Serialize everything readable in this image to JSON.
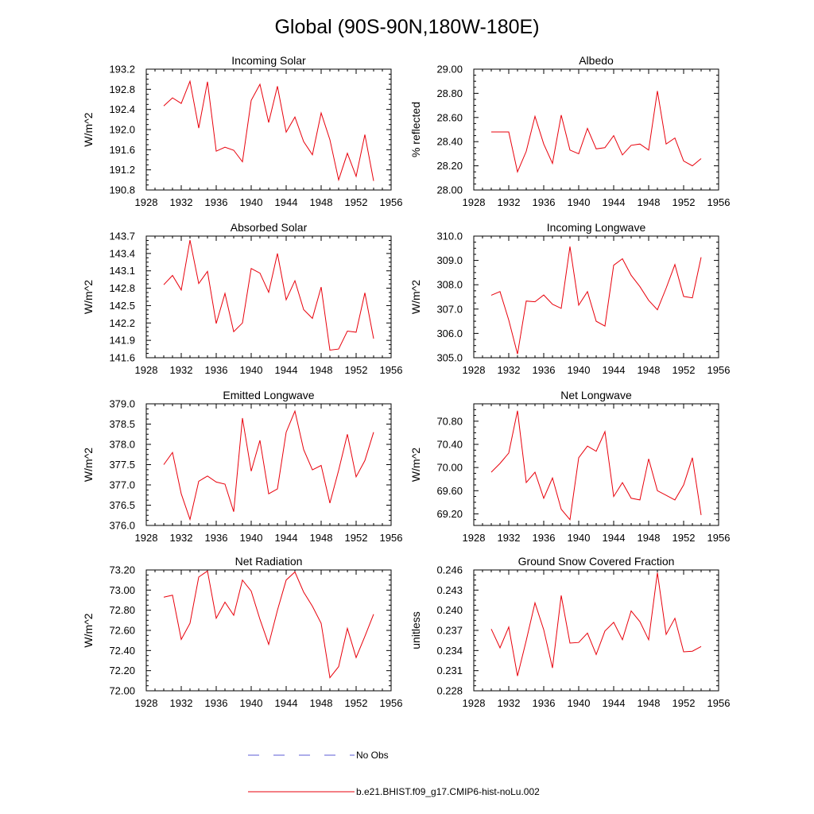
{
  "figure": {
    "title": "Global (90S-90N,180W-180E)"
  },
  "legend": {
    "entries": [
      {
        "label": "No Obs",
        "color": "#5b5bd6",
        "dash": true
      },
      {
        "label": "b.e21.BHIST.f09_g17.CMIP6-hist-noLu.002",
        "color": "#e8000b",
        "dash": false
      }
    ]
  },
  "colors": {
    "series": "#e8000b",
    "obs": "#5b5bd6"
  },
  "chart_data": [
    {
      "type": "line",
      "title": "Incoming Solar",
      "ylabel": "W/m^2",
      "xlim": [
        1928,
        1956
      ],
      "xticks": [
        1928,
        1932,
        1936,
        1940,
        1944,
        1948,
        1952,
        1956
      ],
      "ylim": [
        190.8,
        193.2
      ],
      "yticks": [
        "190.8",
        "191.2",
        "191.6",
        "192.0",
        "192.4",
        "192.8",
        "193.2"
      ],
      "series": [
        {
          "x": [
            1930,
            1931,
            1932,
            1933,
            1934,
            1935,
            1936,
            1937,
            1938,
            1939,
            1940,
            1941,
            1942,
            1943,
            1944,
            1945,
            1946,
            1947,
            1948,
            1949,
            1950,
            1951,
            1952,
            1953,
            1954
          ],
          "values": [
            192.47,
            192.63,
            192.52,
            192.96,
            192.03,
            192.95,
            191.57,
            191.65,
            191.59,
            191.36,
            192.58,
            192.9,
            192.14,
            192.86,
            191.95,
            192.25,
            191.76,
            191.5,
            192.33,
            191.8,
            191.0,
            191.53,
            191.07,
            191.9,
            190.98
          ]
        }
      ]
    },
    {
      "type": "line",
      "title": "Albedo",
      "ylabel": "% reflected",
      "xlim": [
        1928,
        1956
      ],
      "xticks": [
        1928,
        1932,
        1936,
        1940,
        1944,
        1948,
        1952,
        1956
      ],
      "ylim": [
        28.0,
        29.0
      ],
      "yticks": [
        "28.00",
        "28.20",
        "28.40",
        "28.60",
        "28.80",
        "29.00"
      ],
      "series": [
        {
          "x": [
            1930,
            1931,
            1932,
            1933,
            1934,
            1935,
            1936,
            1937,
            1938,
            1939,
            1940,
            1941,
            1942,
            1943,
            1944,
            1945,
            1946,
            1947,
            1948,
            1949,
            1950,
            1951,
            1952,
            1953,
            1954
          ],
          "values": [
            28.48,
            28.48,
            28.48,
            28.15,
            28.32,
            28.61,
            28.38,
            28.22,
            28.62,
            28.33,
            28.3,
            28.51,
            28.34,
            28.35,
            28.45,
            28.29,
            28.37,
            28.38,
            28.33,
            28.82,
            28.38,
            28.43,
            28.24,
            28.2,
            28.26
          ]
        }
      ]
    },
    {
      "type": "line",
      "title": "Absorbed Solar",
      "ylabel": "W/m^2",
      "xlim": [
        1928,
        1956
      ],
      "xticks": [
        1928,
        1932,
        1936,
        1940,
        1944,
        1948,
        1952,
        1956
      ],
      "ylim": [
        141.6,
        143.7
      ],
      "yticks": [
        "141.6",
        "141.9",
        "142.2",
        "142.5",
        "142.8",
        "143.1",
        "143.4",
        "143.7"
      ],
      "series": [
        {
          "x": [
            1930,
            1931,
            1932,
            1933,
            1934,
            1935,
            1936,
            1937,
            1938,
            1939,
            1940,
            1941,
            1942,
            1943,
            1944,
            1945,
            1946,
            1947,
            1948,
            1949,
            1950,
            1951,
            1952,
            1953,
            1954
          ],
          "values": [
            142.86,
            143.02,
            142.77,
            143.63,
            142.88,
            143.09,
            142.19,
            142.71,
            142.05,
            142.2,
            143.14,
            143.06,
            142.73,
            143.4,
            142.6,
            142.93,
            142.43,
            142.28,
            142.82,
            141.73,
            141.75,
            142.06,
            142.04,
            142.72,
            141.93
          ]
        }
      ]
    },
    {
      "type": "line",
      "title": "Incoming Longwave",
      "ylabel": "W/m^2",
      "xlim": [
        1928,
        1956
      ],
      "xticks": [
        1928,
        1932,
        1936,
        1940,
        1944,
        1948,
        1952,
        1956
      ],
      "ylim": [
        305.0,
        310.0
      ],
      "yticks": [
        "305.0",
        "306.0",
        "307.0",
        "308.0",
        "309.0",
        "310.0"
      ],
      "series": [
        {
          "x": [
            1930,
            1931,
            1932,
            1933,
            1934,
            1935,
            1936,
            1937,
            1938,
            1939,
            1940,
            1941,
            1942,
            1943,
            1944,
            1945,
            1946,
            1947,
            1948,
            1949,
            1950,
            1951,
            1952,
            1953,
            1954
          ],
          "values": [
            307.57,
            307.72,
            306.55,
            305.15,
            307.33,
            307.3,
            307.58,
            307.2,
            307.03,
            309.57,
            307.16,
            307.72,
            306.5,
            306.3,
            308.8,
            309.07,
            308.39,
            307.92,
            307.36,
            306.97,
            307.86,
            308.83,
            307.52,
            307.46,
            309.13
          ]
        }
      ]
    },
    {
      "type": "line",
      "title": "Emitted Longwave",
      "ylabel": "W/m^2",
      "xlim": [
        1928,
        1956
      ],
      "xticks": [
        1928,
        1932,
        1936,
        1940,
        1944,
        1948,
        1952,
        1956
      ],
      "ylim": [
        376.0,
        379.0
      ],
      "yticks": [
        "376.0",
        "376.5",
        "377.0",
        "377.5",
        "378.0",
        "378.5",
        "379.0"
      ],
      "series": [
        {
          "x": [
            1930,
            1931,
            1932,
            1933,
            1934,
            1935,
            1936,
            1937,
            1938,
            1939,
            1940,
            1941,
            1942,
            1943,
            1944,
            1945,
            1946,
            1947,
            1948,
            1949,
            1950,
            1951,
            1952,
            1953,
            1954
          ],
          "values": [
            377.5,
            377.8,
            376.78,
            376.15,
            377.09,
            377.22,
            377.07,
            377.02,
            376.34,
            378.65,
            377.34,
            378.1,
            376.78,
            376.9,
            378.3,
            378.82,
            377.87,
            377.37,
            377.48,
            376.55,
            377.36,
            378.25,
            377.2,
            377.6,
            378.3
          ]
        }
      ]
    },
    {
      "type": "line",
      "title": "Net Longwave",
      "ylabel": "W/m^2",
      "xlim": [
        1928,
        1956
      ],
      "xticks": [
        1928,
        1932,
        1936,
        1940,
        1944,
        1948,
        1952,
        1956
      ],
      "ylim": [
        69.0,
        71.1
      ],
      "yticks": [
        "69.20",
        "69.60",
        "70.00",
        "70.40",
        "70.80"
      ],
      "series": [
        {
          "x": [
            1930,
            1931,
            1932,
            1933,
            1934,
            1935,
            1936,
            1937,
            1938,
            1939,
            1940,
            1941,
            1942,
            1943,
            1944,
            1945,
            1946,
            1947,
            1948,
            1949,
            1950,
            1951,
            1952,
            1953,
            1954
          ],
          "values": [
            69.92,
            70.07,
            70.25,
            70.98,
            69.74,
            69.92,
            69.47,
            69.82,
            69.28,
            69.1,
            70.17,
            70.37,
            70.28,
            70.62,
            69.5,
            69.74,
            69.47,
            69.44,
            70.15,
            69.6,
            69.52,
            69.44,
            69.7,
            70.17,
            69.18
          ]
        }
      ]
    },
    {
      "type": "line",
      "title": "Net Radiation",
      "ylabel": "W/m^2",
      "xlim": [
        1928,
        1956
      ],
      "xticks": [
        1928,
        1932,
        1936,
        1940,
        1944,
        1948,
        1952,
        1956
      ],
      "ylim": [
        72.0,
        73.2
      ],
      "yticks": [
        "72.00",
        "72.20",
        "72.40",
        "72.60",
        "72.80",
        "73.00",
        "73.20"
      ],
      "series": [
        {
          "x": [
            1930,
            1931,
            1932,
            1933,
            1934,
            1935,
            1936,
            1937,
            1938,
            1939,
            1940,
            1941,
            1942,
            1943,
            1944,
            1945,
            1946,
            1947,
            1948,
            1949,
            1950,
            1951,
            1952,
            1953,
            1954
          ],
          "values": [
            72.93,
            72.95,
            72.51,
            72.67,
            73.13,
            73.19,
            72.72,
            72.88,
            72.75,
            73.1,
            72.99,
            72.71,
            72.46,
            72.8,
            73.1,
            73.18,
            72.98,
            72.84,
            72.67,
            72.13,
            72.24,
            72.62,
            72.33,
            72.54,
            72.76
          ]
        }
      ]
    },
    {
      "type": "line",
      "title": "Ground Snow Covered Fraction",
      "ylabel": "unitless",
      "xlim": [
        1928,
        1956
      ],
      "xticks": [
        1928,
        1932,
        1936,
        1940,
        1944,
        1948,
        1952,
        1956
      ],
      "ylim": [
        0.228,
        0.246
      ],
      "yticks": [
        "0.228",
        "0.231",
        "0.234",
        "0.237",
        "0.240",
        "0.243",
        "0.246"
      ],
      "series": [
        {
          "x": [
            1930,
            1931,
            1932,
            1933,
            1934,
            1935,
            1936,
            1937,
            1938,
            1939,
            1940,
            1941,
            1942,
            1943,
            1944,
            1945,
            1946,
            1947,
            1948,
            1949,
            1950,
            1951,
            1952,
            1953,
            1954
          ],
          "values": [
            0.2372,
            0.2344,
            0.2375,
            0.2302,
            0.2355,
            0.2411,
            0.2371,
            0.2314,
            0.2422,
            0.2351,
            0.2352,
            0.2366,
            0.2334,
            0.2369,
            0.2382,
            0.2356,
            0.2399,
            0.2383,
            0.2356,
            0.2456,
            0.2364,
            0.2388,
            0.2338,
            0.2339,
            0.2346
          ]
        }
      ]
    }
  ]
}
